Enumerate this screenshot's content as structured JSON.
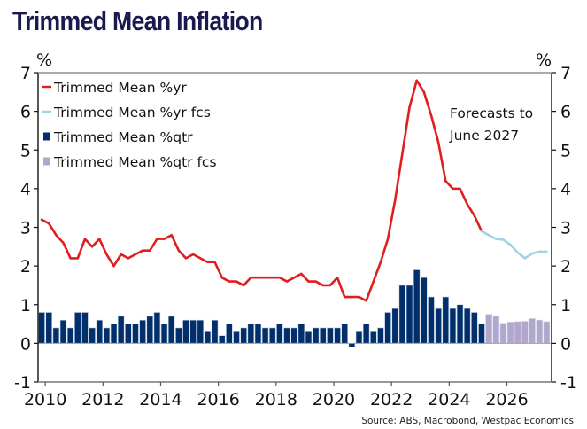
{
  "chart_data": {
    "type": "bar+line",
    "title": "Trimmed Mean Inflation",
    "ylabel_left": "%",
    "ylabel_right": "%",
    "ylim": [
      -1,
      7
    ],
    "yticks": [
      -1,
      0,
      1,
      2,
      3,
      4,
      5,
      6,
      7
    ],
    "xlim": [
      2009.75,
      2027.55
    ],
    "xticks": [
      2010,
      2012,
      2014,
      2016,
      2018,
      2020,
      2022,
      2024,
      2026
    ],
    "start_quarter": "2009Q4",
    "legend": {
      "placement": "top-left",
      "entries": [
        {
          "label": "Trimmed Mean %yr",
          "kind": "line",
          "color": "#e01e1e"
        },
        {
          "label": "Trimmed Mean %yr fcs",
          "kind": "line",
          "color": "#9ed3e6"
        },
        {
          "label": "Trimmed Mean %qtr",
          "kind": "bar",
          "color": "#002f6c"
        },
        {
          "label": "Trimmed Mean %qtr fcs",
          "kind": "bar",
          "color": "#b3a6cc"
        }
      ]
    },
    "annotation": [
      "Forecasts to",
      "June 2027"
    ],
    "source": "Source: ABS, Macrobond, Westpac Economics",
    "series": [
      {
        "name": "Trimmed Mean %qtr",
        "type": "bar",
        "color": "#002f6c",
        "start_quarter": "2009Q4",
        "values": [
          0.8,
          0.8,
          0.4,
          0.6,
          0.4,
          0.8,
          0.8,
          0.4,
          0.6,
          0.4,
          0.5,
          0.7,
          0.5,
          0.5,
          0.6,
          0.7,
          0.8,
          0.5,
          0.7,
          0.4,
          0.6,
          0.6,
          0.6,
          0.3,
          0.6,
          0.2,
          0.5,
          0.3,
          0.4,
          0.5,
          0.5,
          0.4,
          0.4,
          0.5,
          0.4,
          0.4,
          0.5,
          0.3,
          0.4,
          0.4,
          0.4,
          0.4,
          0.5,
          -0.1,
          0.3,
          0.5,
          0.3,
          0.4,
          0.8,
          0.9,
          1.5,
          1.5,
          1.9,
          1.7,
          1.2,
          0.9,
          1.2,
          0.9,
          1.0,
          0.9,
          0.8,
          0.5,
          0.7
        ]
      },
      {
        "name": "Trimmed Mean %qtr fcs",
        "type": "bar",
        "color": "#b3a6cc",
        "start_quarter": "2025Q2",
        "values": [
          0.75,
          0.7,
          0.52,
          0.55,
          0.56,
          0.57,
          0.64,
          0.6,
          0.56
        ]
      },
      {
        "name": "Trimmed Mean %yr",
        "type": "line",
        "color": "#e01e1e",
        "start_quarter": "2009Q4",
        "values": [
          3.2,
          3.1,
          2.8,
          2.6,
          2.2,
          2.2,
          2.7,
          2.5,
          2.7,
          2.3,
          2.0,
          2.3,
          2.2,
          2.3,
          2.4,
          2.4,
          2.7,
          2.7,
          2.8,
          2.4,
          2.2,
          2.3,
          2.2,
          2.1,
          2.1,
          1.7,
          1.6,
          1.6,
          1.5,
          1.7,
          1.7,
          1.7,
          1.7,
          1.7,
          1.6,
          1.7,
          1.8,
          1.6,
          1.6,
          1.5,
          1.5,
          1.7,
          1.2,
          1.2,
          1.2,
          1.1,
          1.6,
          2.1,
          2.7,
          3.7,
          4.9,
          6.1,
          6.8,
          6.5,
          5.9,
          5.2,
          4.2,
          4.0,
          4.0,
          3.6,
          3.3,
          2.9
        ]
      },
      {
        "name": "Trimmed Mean %yr fcs",
        "type": "line",
        "color": "#9ed3e6",
        "start_quarter": "2025Q1",
        "values": [
          2.9,
          2.8,
          2.7,
          2.68,
          2.55,
          2.35,
          2.2,
          2.32,
          2.37,
          2.37
        ]
      }
    ]
  }
}
